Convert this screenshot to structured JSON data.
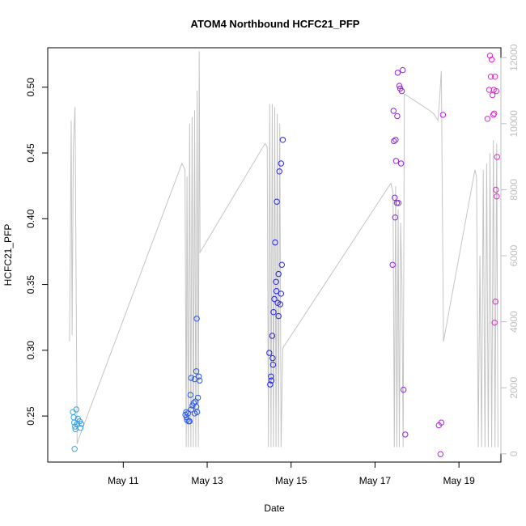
{
  "chart_data": {
    "type": "scatter",
    "title": "ATOM4 Northbound HCFC21_PFP",
    "xlabel": "Date",
    "ylabel": "HCFC21_PFP",
    "x_ticks": [
      "May 11",
      "May 13",
      "May 15",
      "May 17",
      "May 19"
    ],
    "x_tick_days": [
      11,
      13,
      15,
      17,
      19
    ],
    "xlim_days": [
      9.2,
      20.0
    ],
    "ylim": [
      0.215,
      0.53
    ],
    "y_ticks": [
      0.25,
      0.3,
      0.35,
      0.4,
      0.45,
      0.5
    ],
    "y_tick_labels": [
      "0.25",
      "0.30",
      "0.35",
      "0.40",
      "0.45",
      "0.50"
    ],
    "y2lim": [
      -250,
      12300
    ],
    "y2_ticks": [
      0,
      2000,
      4000,
      6000,
      8000,
      10000,
      12000
    ],
    "y2_tick_labels": [
      "0",
      "2000",
      "4000",
      "6000",
      "8000",
      "10000",
      "12000"
    ],
    "grid": false,
    "colors": {
      "frame": "#000000",
      "axis_text": "#000000",
      "right_axis": "#bebebe",
      "altitude_line": "#c4c4c4",
      "point_start": "#33b5ee",
      "point_mid": "#2222ee",
      "point_end": "#ee22d8"
    },
    "series": [
      {
        "marker": "open-circle",
        "points": [
          [
            9.8,
            0.253
          ],
          [
            9.83,
            0.245
          ],
          [
            9.82,
            0.249
          ],
          [
            9.85,
            0.242
          ],
          [
            9.86,
            0.24
          ],
          [
            9.88,
            0.255
          ],
          [
            9.9,
            0.244
          ],
          [
            9.92,
            0.248
          ],
          [
            9.84,
            0.225
          ],
          [
            9.96,
            0.246
          ],
          [
            9.98,
            0.241
          ],
          [
            10.0,
            0.244
          ],
          [
            12.48,
            0.251
          ],
          [
            12.5,
            0.253
          ],
          [
            12.51,
            0.249
          ],
          [
            12.52,
            0.247
          ],
          [
            12.54,
            0.252
          ],
          [
            12.56,
            0.246
          ],
          [
            12.58,
            0.246
          ],
          [
            12.6,
            0.266
          ],
          [
            12.62,
            0.255
          ],
          [
            12.62,
            0.279
          ],
          [
            12.65,
            0.258
          ],
          [
            12.68,
            0.26
          ],
          [
            12.7,
            0.278
          ],
          [
            12.72,
            0.261
          ],
          [
            12.74,
            0.284
          ],
          [
            12.75,
            0.324
          ],
          [
            12.76,
            0.253
          ],
          [
            12.78,
            0.264
          ],
          [
            12.8,
            0.28
          ],
          [
            12.82,
            0.277
          ],
          [
            12.7,
            0.252
          ],
          [
            12.74,
            0.257
          ],
          [
            14.48,
            0.298
          ],
          [
            14.5,
            0.274
          ],
          [
            14.52,
            0.28
          ],
          [
            14.53,
            0.277
          ],
          [
            14.55,
            0.311
          ],
          [
            14.56,
            0.294
          ],
          [
            14.57,
            0.289
          ],
          [
            14.58,
            0.329
          ],
          [
            14.6,
            0.339
          ],
          [
            14.62,
            0.382
          ],
          [
            14.64,
            0.352
          ],
          [
            14.65,
            0.345
          ],
          [
            14.66,
            0.413
          ],
          [
            14.68,
            0.336
          ],
          [
            14.7,
            0.358
          ],
          [
            14.7,
            0.326
          ],
          [
            14.72,
            0.436
          ],
          [
            14.74,
            0.335
          ],
          [
            14.76,
            0.442
          ],
          [
            14.76,
            0.343
          ],
          [
            14.78,
            0.365
          ],
          [
            14.8,
            0.46
          ],
          [
            17.42,
            0.365
          ],
          [
            17.44,
            0.482
          ],
          [
            17.45,
            0.459
          ],
          [
            17.47,
            0.416
          ],
          [
            17.48,
            0.401
          ],
          [
            17.49,
            0.46
          ],
          [
            17.5,
            0.444
          ],
          [
            17.52,
            0.412
          ],
          [
            17.53,
            0.478
          ],
          [
            17.54,
            0.511
          ],
          [
            17.56,
            0.412
          ],
          [
            17.58,
            0.501
          ],
          [
            17.6,
            0.499
          ],
          [
            17.62,
            0.442
          ],
          [
            17.64,
            0.497
          ],
          [
            17.66,
            0.513
          ],
          [
            17.68,
            0.27
          ],
          [
            17.72,
            0.236
          ],
          [
            18.52,
            0.243
          ],
          [
            18.58,
            0.245
          ],
          [
            18.56,
            0.221
          ],
          [
            18.62,
            0.479
          ],
          [
            19.68,
            0.476
          ],
          [
            19.72,
            0.498
          ],
          [
            19.74,
            0.524
          ],
          [
            19.76,
            0.508
          ],
          [
            19.78,
            0.521
          ],
          [
            19.8,
            0.494
          ],
          [
            19.82,
            0.479
          ],
          [
            19.83,
            0.498
          ],
          [
            19.84,
            0.48
          ],
          [
            19.85,
            0.321
          ],
          [
            19.86,
            0.508
          ],
          [
            19.87,
            0.337
          ],
          [
            19.88,
            0.422
          ],
          [
            19.89,
            0.497
          ],
          [
            19.9,
            0.417
          ],
          [
            19.91,
            0.447
          ]
        ]
      },
      {
        "type": "line",
        "axis": "right",
        "points": [
          [
            9.72,
            3400
          ],
          [
            9.76,
            10100
          ],
          [
            9.78,
            3600
          ],
          [
            9.81,
            9300
          ],
          [
            9.85,
            10500
          ],
          [
            9.9,
            300
          ],
          [
            9.95,
            500
          ],
          [
            12.4,
            8800
          ],
          [
            12.47,
            8600
          ],
          [
            12.5,
            200
          ],
          [
            12.52,
            8400
          ],
          [
            12.55,
            200
          ],
          [
            12.58,
            10000
          ],
          [
            12.61,
            200
          ],
          [
            12.64,
            10200
          ],
          [
            12.67,
            200
          ],
          [
            12.7,
            10400
          ],
          [
            12.73,
            200
          ],
          [
            12.76,
            11000
          ],
          [
            12.79,
            200
          ],
          [
            12.81,
            12200
          ],
          [
            12.83,
            6100
          ],
          [
            14.38,
            9400
          ],
          [
            14.43,
            9300
          ],
          [
            14.46,
            200
          ],
          [
            14.49,
            10600
          ],
          [
            14.52,
            200
          ],
          [
            14.55,
            10600
          ],
          [
            14.58,
            200
          ],
          [
            14.61,
            10500
          ],
          [
            14.64,
            200
          ],
          [
            14.67,
            10300
          ],
          [
            14.7,
            200
          ],
          [
            14.73,
            10000
          ],
          [
            14.76,
            200
          ],
          [
            14.8,
            3200
          ],
          [
            17.38,
            8200
          ],
          [
            17.43,
            7900
          ],
          [
            17.46,
            200
          ],
          [
            17.49,
            8100
          ],
          [
            17.52,
            200
          ],
          [
            17.55,
            7400
          ],
          [
            17.58,
            200
          ],
          [
            17.61,
            7000
          ],
          [
            17.64,
            5200
          ],
          [
            17.67,
            200
          ],
          [
            17.7,
            10900
          ],
          [
            18.3,
            10400
          ],
          [
            18.4,
            10300
          ],
          [
            18.5,
            10100
          ],
          [
            18.53,
            10600
          ],
          [
            18.58,
            11600
          ],
          [
            18.63,
            3400
          ],
          [
            19.38,
            8600
          ],
          [
            19.42,
            8400
          ],
          [
            19.46,
            200
          ],
          [
            19.5,
            6000
          ],
          [
            19.54,
            200
          ],
          [
            19.58,
            8600
          ],
          [
            19.62,
            200
          ],
          [
            19.66,
            8800
          ],
          [
            19.7,
            200
          ],
          [
            19.74,
            9100
          ],
          [
            19.78,
            200
          ],
          [
            19.82,
            9500
          ],
          [
            19.86,
            200
          ],
          [
            19.9,
            9400
          ],
          [
            19.93,
            200
          ]
        ]
      }
    ]
  }
}
